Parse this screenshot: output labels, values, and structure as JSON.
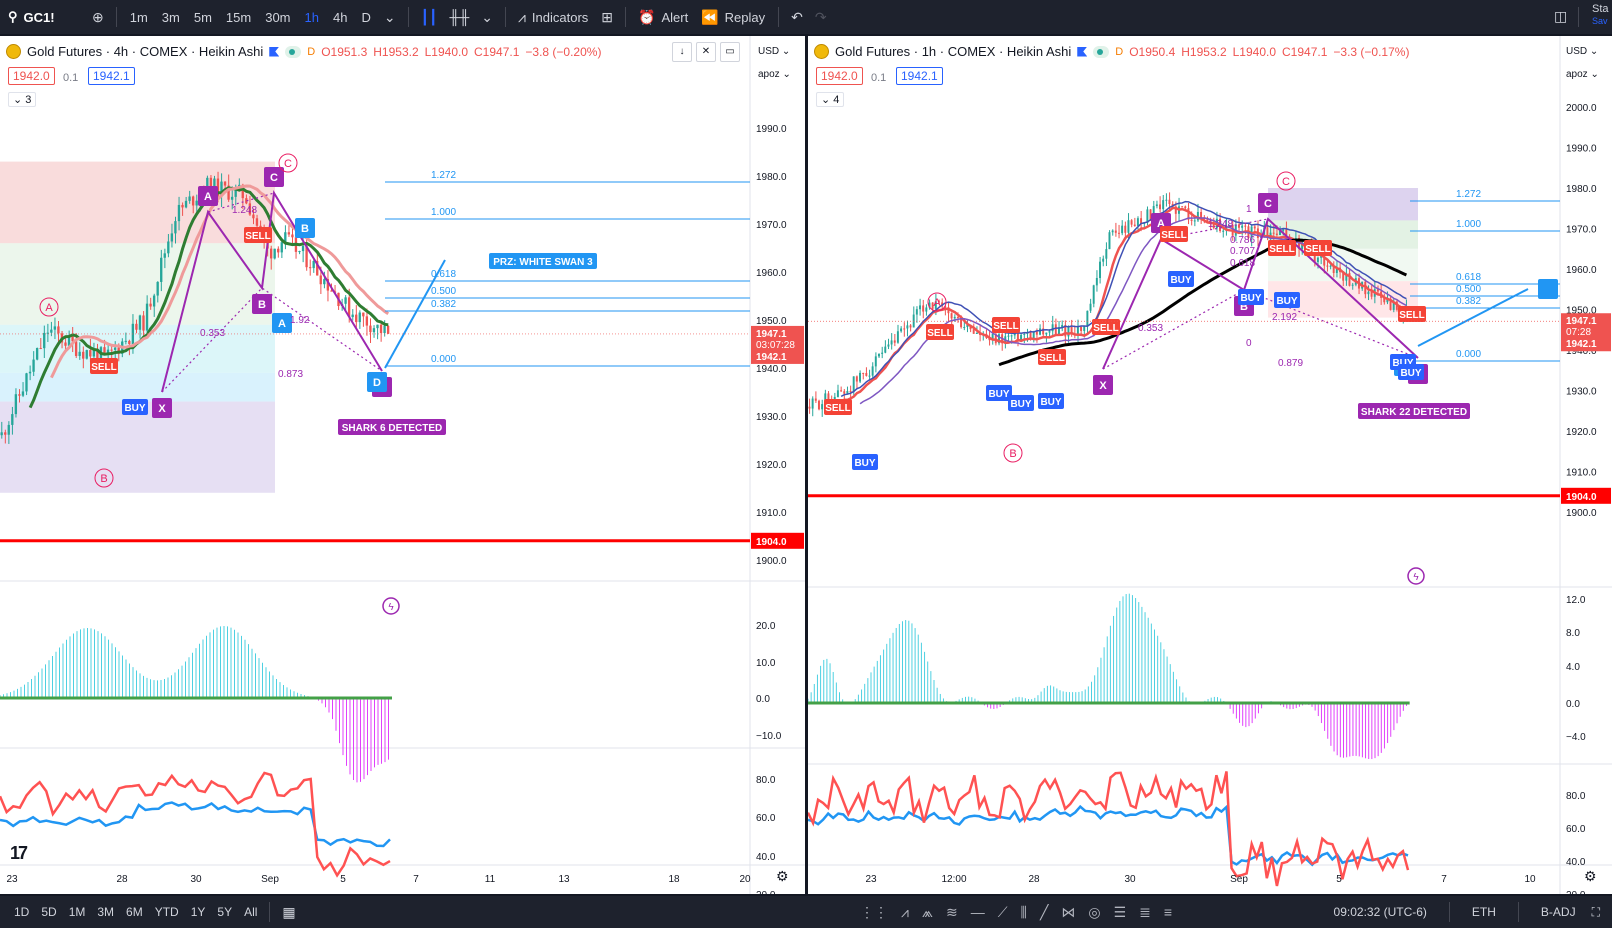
{
  "topbar": {
    "symbol": "GC1!",
    "intervals": [
      "1m",
      "3m",
      "5m",
      "15m",
      "30m",
      "1h",
      "4h",
      "D"
    ],
    "active_interval": "1h",
    "indicators_label": "Indicators",
    "alert_label": "Alert",
    "replay_label": "Replay",
    "right_label": "Sta",
    "right_sub": "Sav"
  },
  "bottombar": {
    "ranges": [
      "1D",
      "5D",
      "1M",
      "3M",
      "6M",
      "YTD",
      "1Y",
      "5Y",
      "All"
    ],
    "clock": "09:02:32 (UTC-6)",
    "session": "ETH",
    "adjustment": "B-ADJ"
  },
  "left_chart": {
    "title": "Gold Futures · 4h · COMEX · Heikin Ashi",
    "ohlc": {
      "o": "O1951.3",
      "h": "H1953.2",
      "l": "L1940.0",
      "c": "C1947.1",
      "chg": "−3.8 (−0.20%)"
    },
    "bid": "1942.0",
    "step": "0.1",
    "ask": "1942.1",
    "study_count": "3",
    "currency": "USD",
    "unit": "apoz",
    "price_ticks": [
      "1990.0",
      "1980.0",
      "1970.0",
      "1960.0",
      "1950.0",
      "1940.0",
      "1930.0",
      "1920.0",
      "1910.0",
      "1900.0"
    ],
    "last_price": "1947.1",
    "countdown": "03:07:28",
    "ask_label": "1942.1",
    "support": "1904.0",
    "osc_ticks": [
      "20.0",
      "10.0",
      "0.0",
      "−10.0"
    ],
    "rsi_ticks": [
      "80.0",
      "60.0",
      "40.0",
      "20.0"
    ],
    "time_ticks": [
      "23",
      "28",
      "30",
      "Sep",
      "5",
      "7",
      "11",
      "13",
      "18",
      "20"
    ],
    "fib_levels": [
      "1.272",
      "1.000",
      "0.618",
      "0.500",
      "0.382",
      "0.000"
    ],
    "prz_label": "PRZ: WHITE SWAN 3",
    "pattern_label": "SHARK 6 DETECTED",
    "ratio_labels": [
      "1.248",
      "0.353",
      "0.873",
      "1.92"
    ],
    "points": [
      "X",
      "A",
      "B",
      "C",
      "D"
    ],
    "elliott": [
      "A",
      "B",
      "C"
    ],
    "signals": {
      "buy": "BUY",
      "sell": "SELL"
    }
  },
  "right_chart": {
    "title": "Gold Futures · 1h · COMEX · Heikin Ashi",
    "ohlc": {
      "o": "O1950.4",
      "h": "H1953.2",
      "l": "L1940.0",
      "c": "C1947.1",
      "chg": "−3.3 (−0.17%)"
    },
    "bid": "1942.0",
    "step": "0.1",
    "ask": "1942.1",
    "study_count": "4",
    "currency": "USD",
    "unit": "apoz",
    "price_ticks": [
      "2000.0",
      "1990.0",
      "1980.0",
      "1970.0",
      "1960.0",
      "1950.0",
      "1940.0",
      "1930.0",
      "1920.0",
      "1910.0",
      "1900.0"
    ],
    "last_price": "1947.1",
    "countdown": "07:28",
    "ask_label": "1942.1",
    "support": "1904.0",
    "osc_ticks": [
      "12.0",
      "8.0",
      "4.0",
      "0.0",
      "−4.0"
    ],
    "rsi_ticks": [
      "80.0",
      "60.0",
      "40.0",
      "20.0"
    ],
    "time_ticks": [
      "23",
      "12:00",
      "28",
      "30",
      "Sep",
      "5",
      "7",
      "10"
    ],
    "fib_levels": [
      "1.272",
      "1.000",
      "0.618",
      "0.500",
      "0.382",
      "0.000"
    ],
    "pattern_label": "SHARK 22 DETECTED",
    "ratio_labels": [
      "1.248",
      "0.786",
      "0.707",
      "0.618",
      "2.192",
      "0.353",
      "0.879",
      "1",
      "0"
    ],
    "points": [
      "X",
      "A",
      "B",
      "C",
      "D"
    ],
    "elliott": [
      "A",
      "B",
      "C"
    ],
    "signals": {
      "buy": "BUY",
      "sell": "SELL"
    }
  },
  "colors": {
    "up": "#26a69a",
    "down": "#ef5350",
    "pattern": "#9c27b0",
    "projection": "#2196f3",
    "support": "#ff0000",
    "osc_up": "#4dd0e1",
    "osc_down": "#e040fb",
    "rsi_fast": "#ff5252",
    "rsi_slow": "#2196f3"
  }
}
